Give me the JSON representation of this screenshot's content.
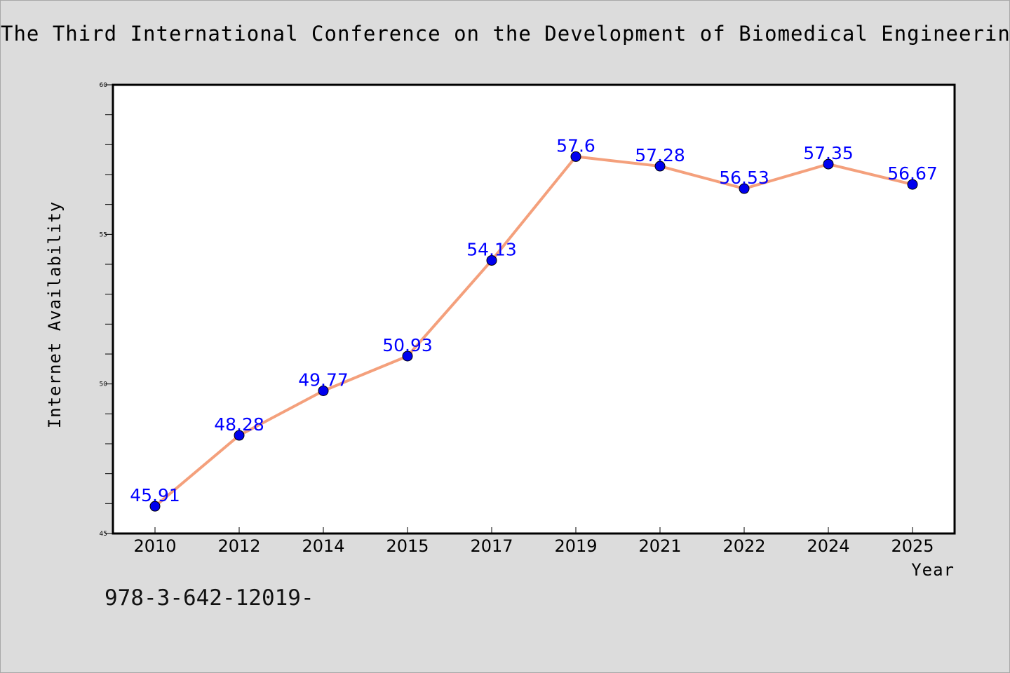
{
  "chart_data": {
    "type": "line",
    "title": "The Third International Conference on the Development of Biomedical Engineering",
    "xlabel": "Year",
    "ylabel": "Internet Availability",
    "categories": [
      "2010",
      "2012",
      "2014",
      "2015",
      "2017",
      "2019",
      "2021",
      "2022",
      "2024",
      "2025"
    ],
    "series": [
      {
        "values": [
          45.91,
          48.28,
          49.77,
          50.93,
          54.13,
          57.6,
          57.28,
          56.53,
          57.35,
          56.67
        ],
        "data_labels": [
          "45.91",
          "48.28",
          "49.77",
          "50.93",
          "54.13",
          "57.6",
          "57.28",
          "56.53",
          "57.35",
          "56.67"
        ],
        "line_color": "#f4a07c",
        "marker_color": "#0000ee"
      }
    ],
    "ylim": [
      45,
      60
    ],
    "y_ticks": [
      "45",
      "50",
      "55",
      "60"
    ],
    "grid": false,
    "plot_background": "#ffffff",
    "label_color": "#0000ff"
  },
  "footer": {
    "text": "978-3-642-12019-"
  }
}
